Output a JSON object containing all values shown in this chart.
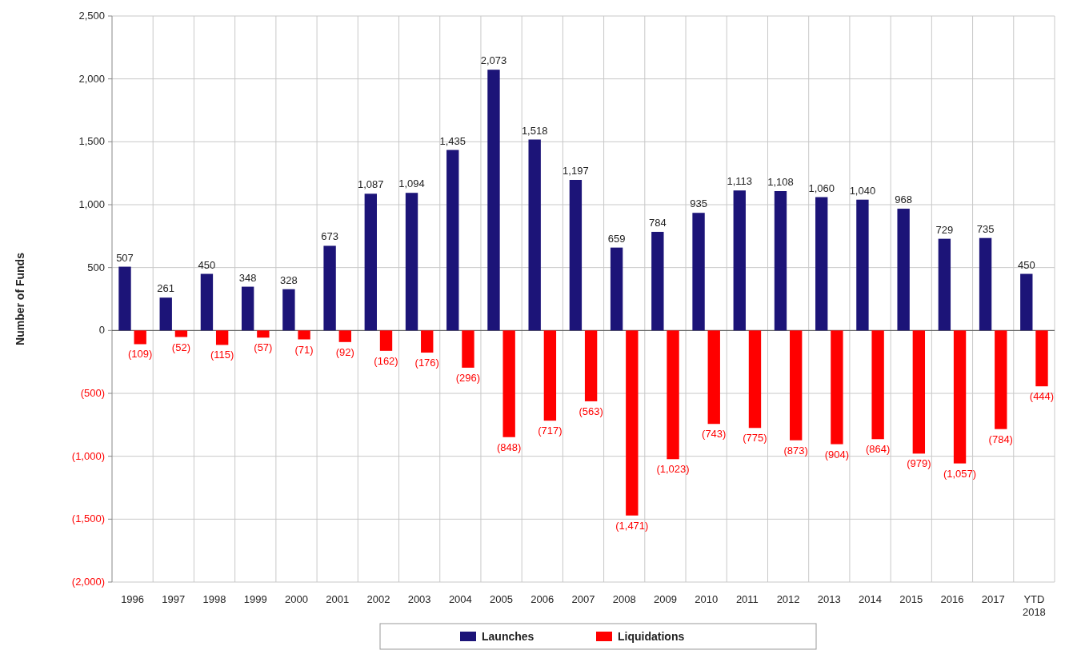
{
  "chart_data": {
    "type": "bar",
    "ylabel": "Number of Funds",
    "categories": [
      "1996",
      "1997",
      "1998",
      "1999",
      "2000",
      "2001",
      "2002",
      "2003",
      "2004",
      "2005",
      "2006",
      "2007",
      "2008",
      "2009",
      "2010",
      "2011",
      "2012",
      "2013",
      "2014",
      "2015",
      "2016",
      "2017",
      "YTD 2018"
    ],
    "series": [
      {
        "name": "Launches",
        "color": "#1c1478",
        "values": [
          507,
          261,
          450,
          348,
          328,
          673,
          1087,
          1094,
          1435,
          2073,
          1518,
          1197,
          659,
          784,
          935,
          1113,
          1108,
          1060,
          1040,
          968,
          729,
          735,
          450
        ],
        "value_labels": [
          "507",
          "261",
          "450",
          "348",
          "328",
          "673",
          "1,087",
          "1,094",
          "1,435",
          "2,073",
          "1,518",
          "1,197",
          "659",
          "784",
          "935",
          "1,113",
          "1,108",
          "1,060",
          "1,040",
          "968",
          "729",
          "735",
          "450"
        ]
      },
      {
        "name": "Liquidations",
        "color": "#ff0000",
        "values": [
          -109,
          -52,
          -115,
          -57,
          -71,
          -92,
          -162,
          -176,
          -296,
          -848,
          -717,
          -563,
          -1471,
          -1023,
          -743,
          -775,
          -873,
          -904,
          -864,
          -979,
          -1057,
          -784,
          -444
        ],
        "value_labels": [
          "(109)",
          "(52)",
          "(115)",
          "(57)",
          "(71)",
          "(92)",
          "(162)",
          "(176)",
          "(296)",
          "(848)",
          "(717)",
          "(563)",
          "(1,471)",
          "(1,023)",
          "(743)",
          "(775)",
          "(873)",
          "(904)",
          "(864)",
          "(979)",
          "(1,057)",
          "(784)",
          "(444)"
        ]
      }
    ],
    "ylim": [
      -2000,
      2500
    ],
    "yticks": [
      {
        "value": -2000,
        "label": "(2,000)"
      },
      {
        "value": -1500,
        "label": "(1,500)"
      },
      {
        "value": -1000,
        "label": "(1,000)"
      },
      {
        "value": -500,
        "label": "(500)"
      },
      {
        "value": 0,
        "label": "0"
      },
      {
        "value": 500,
        "label": "500"
      },
      {
        "value": 1000,
        "label": "1,000"
      },
      {
        "value": 1500,
        "label": "1,500"
      },
      {
        "value": 2000,
        "label": "2,000"
      },
      {
        "value": 2500,
        "label": "2,500"
      }
    ],
    "grid": true,
    "legend": "bottom"
  }
}
